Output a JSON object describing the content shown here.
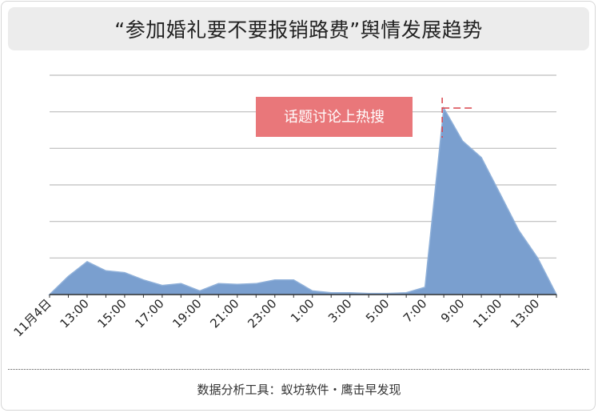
{
  "title": "“参加婚礼要不要报销路费”舆情发展趋势",
  "footer": "数据分析工具：蚁坊软件・鹰击早发现",
  "colors": {
    "area": "#7a9fcf",
    "area_stroke": "#8fb0d9",
    "annotation": "#e9777a",
    "annotation_line": "#d9424a",
    "grid": "#bdbdbd",
    "axis": "#333333"
  },
  "chart_data": {
    "type": "area",
    "title": "“参加婚礼要不要报销路费”舆情发展趋势",
    "xlabel": "",
    "ylabel": "",
    "x_tick_labels": [
      "11月4日",
      "13:00",
      "15:00",
      "17:00",
      "19:00",
      "21:00",
      "23:00",
      "1:00",
      "3:00",
      "5:00",
      "7:00",
      "9:00",
      "11:00",
      "13:00"
    ],
    "x": [
      "11月4日",
      "12:00",
      "13:00",
      "14:00",
      "15:00",
      "16:00",
      "17:00",
      "18:00",
      "19:00",
      "20:00",
      "21:00",
      "22:00",
      "23:00",
      "0:00",
      "1:00",
      "2:00",
      "3:00",
      "4:00",
      "5:00",
      "6:00",
      "7:00",
      "8:00",
      "9:00",
      "10:00",
      "11:00",
      "12:00",
      "13:00",
      "14:00"
    ],
    "values": [
      0,
      0.5,
      0.9,
      0.65,
      0.6,
      0.4,
      0.25,
      0.3,
      0.1,
      0.3,
      0.28,
      0.3,
      0.4,
      0.4,
      0.1,
      0.05,
      0.05,
      0.03,
      0.03,
      0.05,
      0.2,
      5.1,
      4.2,
      3.75,
      2.75,
      1.75,
      1.0,
      0
    ],
    "ylim": [
      0,
      6
    ],
    "y_gridlines": [
      1,
      2,
      3,
      4,
      5,
      6
    ],
    "y_tick_labels": false,
    "grid": true,
    "annotation": {
      "text": "话题讨论上热搜",
      "at_x": "8:00"
    }
  }
}
